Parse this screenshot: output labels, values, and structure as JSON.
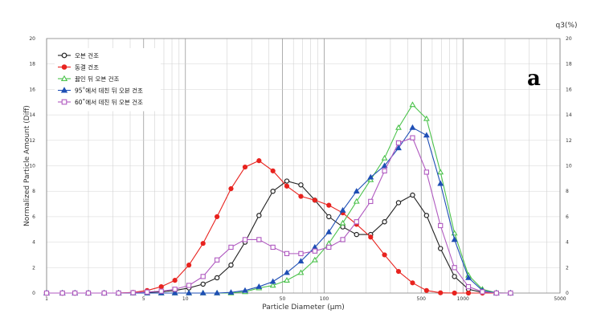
{
  "chart_data": {
    "type": "line",
    "panel_label": "a",
    "xlabel": "Particle Diameter (µm)",
    "ylabel": "Normalized Particle Amount (Diff)",
    "y2label": "q3(%)",
    "x_scale": "log",
    "xlim": [
      1,
      5000
    ],
    "ylim": [
      0,
      20
    ],
    "x_ticks": [
      1,
      5,
      10,
      50,
      100,
      500,
      1000,
      5000
    ],
    "x_tick_labels": [
      "1",
      "5",
      "10",
      "50",
      "100",
      "500",
      "1000",
      "5000"
    ],
    "y_ticks": [
      0,
      2,
      4,
      6,
      8,
      10,
      12,
      14,
      16,
      18,
      20
    ],
    "y_tick_labels": [
      "0",
      "2",
      "4",
      "6",
      "8",
      "10",
      "12",
      "14",
      "16",
      "18",
      "20"
    ],
    "grid": true,
    "legend_position": "top-left",
    "x": [
      1.0,
      1.3,
      1.6,
      2.0,
      2.6,
      3.3,
      4.2,
      5.3,
      6.7,
      8.4,
      10.6,
      13.4,
      16.9,
      21.3,
      26.9,
      33.9,
      42.7,
      53.8,
      67.9,
      85.6,
      108,
      136,
      171,
      216,
      272,
      343,
      433,
      546,
      688,
      868,
      1094,
      1380,
      1740,
      2200
    ],
    "series": [
      {
        "name": "오븐 건조",
        "marker": "circle-open",
        "color": "#222222",
        "values": [
          0,
          0,
          0,
          0,
          0,
          0,
          0.02,
          0.05,
          0.1,
          0.2,
          0.4,
          0.7,
          1.2,
          2.2,
          4.0,
          6.1,
          8.0,
          8.8,
          8.5,
          7.3,
          6.0,
          5.2,
          4.6,
          4.6,
          5.6,
          7.1,
          7.7,
          6.1,
          3.5,
          1.3,
          0.3,
          0.05,
          0,
          0
        ]
      },
      {
        "name": "동결 건조",
        "marker": "circle-filled",
        "color": "#e8231f",
        "values": [
          0,
          0,
          0,
          0,
          0,
          0,
          0.05,
          0.2,
          0.5,
          1.0,
          2.2,
          3.9,
          6.0,
          8.2,
          9.9,
          10.4,
          9.6,
          8.4,
          7.6,
          7.3,
          6.9,
          6.3,
          5.4,
          4.4,
          3.0,
          1.7,
          0.8,
          0.2,
          0.02,
          0,
          0,
          0,
          0,
          0
        ]
      },
      {
        "name": "끓인 뒤 오븐 건조",
        "marker": "triangle-open",
        "color": "#4cc34c",
        "values": [
          0,
          0,
          0,
          0,
          0,
          0,
          0,
          0,
          0,
          0,
          0,
          0,
          0,
          0,
          0.1,
          0.4,
          0.6,
          1.0,
          1.6,
          2.6,
          3.9,
          5.5,
          7.2,
          8.9,
          10.6,
          13.0,
          14.8,
          13.7,
          9.5,
          4.7,
          1.4,
          0.3,
          0.02,
          0
        ]
      },
      {
        "name": "95˚에서 데친 뒤 오븐 건조",
        "marker": "triangle-filled",
        "color": "#1f4fb5",
        "values": [
          0,
          0,
          0,
          0,
          0,
          0,
          0,
          0,
          0,
          0,
          0,
          0,
          0,
          0.05,
          0.2,
          0.5,
          0.9,
          1.6,
          2.5,
          3.6,
          4.8,
          6.5,
          8.0,
          9.1,
          10.0,
          11.4,
          13.0,
          12.4,
          8.6,
          4.2,
          1.2,
          0.2,
          0,
          0
        ]
      },
      {
        "name": "60˚에서 데친 뒤 오븐 건조",
        "marker": "square-open",
        "color": "#b05ac0",
        "values": [
          0,
          0,
          0,
          0,
          0,
          0,
          0.03,
          0.08,
          0.15,
          0.3,
          0.6,
          1.3,
          2.6,
          3.6,
          4.2,
          4.2,
          3.6,
          3.1,
          3.1,
          3.3,
          3.6,
          4.2,
          5.6,
          7.2,
          9.6,
          11.8,
          12.2,
          9.5,
          5.3,
          2.0,
          0.5,
          0.1,
          0,
          0
        ]
      }
    ]
  }
}
